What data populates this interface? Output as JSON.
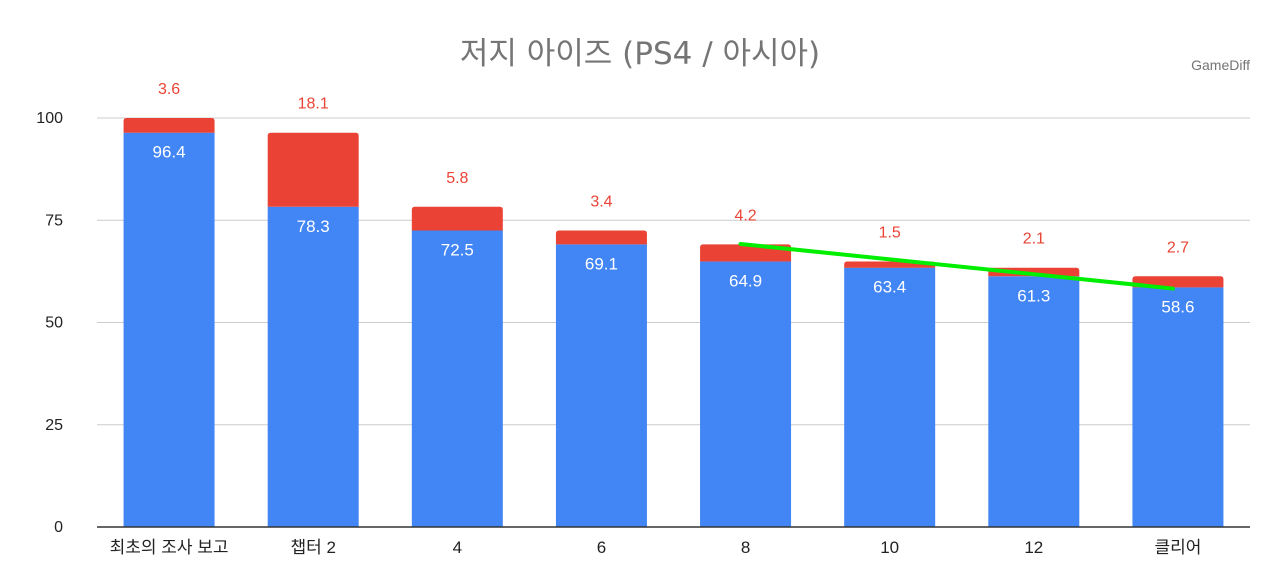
{
  "chart_data": {
    "type": "bar",
    "stacked": true,
    "title": "저지 아이즈 (PS4 / 아시아)",
    "watermark": "GameDiff",
    "categories": [
      "최초의 조사 보고",
      "챕터 2",
      "4",
      "6",
      "8",
      "10",
      "12",
      "클리어"
    ],
    "series": [
      {
        "name": "",
        "color": "#4285f4",
        "values": [
          96.4,
          78.3,
          72.5,
          69.1,
          64.9,
          63.4,
          61.3,
          58.6
        ]
      },
      {
        "name": "",
        "color": "#ea4335",
        "values": [
          3.6,
          18.1,
          5.8,
          3.4,
          4.2,
          1.5,
          2.1,
          2.7
        ]
      }
    ],
    "ylim": [
      0,
      100
    ],
    "yticks": [
      0,
      25,
      50,
      75,
      100
    ],
    "grid": true,
    "trendline": {
      "color": "#00ee00",
      "from_category": "8",
      "to_category": "클리어",
      "y_start": 69.2,
      "y_end": 58.3
    },
    "xlabel": "",
    "ylabel": ""
  }
}
